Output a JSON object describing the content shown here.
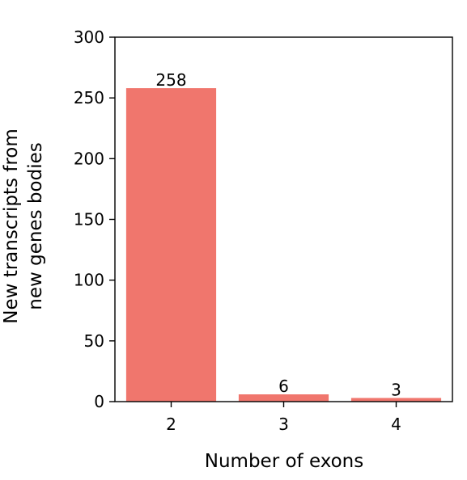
{
  "colors": {
    "bar": "#F0766D",
    "axis": "#000000",
    "background": "#FFFFFF"
  },
  "chart_data": {
    "type": "bar",
    "categories": [
      "2",
      "3",
      "4"
    ],
    "values": [
      258,
      6,
      3
    ],
    "data_labels": [
      "258",
      "6",
      "3"
    ],
    "title": "",
    "xlabel": "Number of exons",
    "ylabel": [
      "New transcripts from",
      "new genes bodies"
    ],
    "ylim": [
      0,
      300
    ],
    "yticks": [
      0,
      50,
      100,
      150,
      200,
      250,
      300
    ],
    "ytick_labels": [
      "0",
      "50",
      "100",
      "150",
      "200",
      "250",
      "300"
    ],
    "grid": false,
    "legend": "none"
  }
}
